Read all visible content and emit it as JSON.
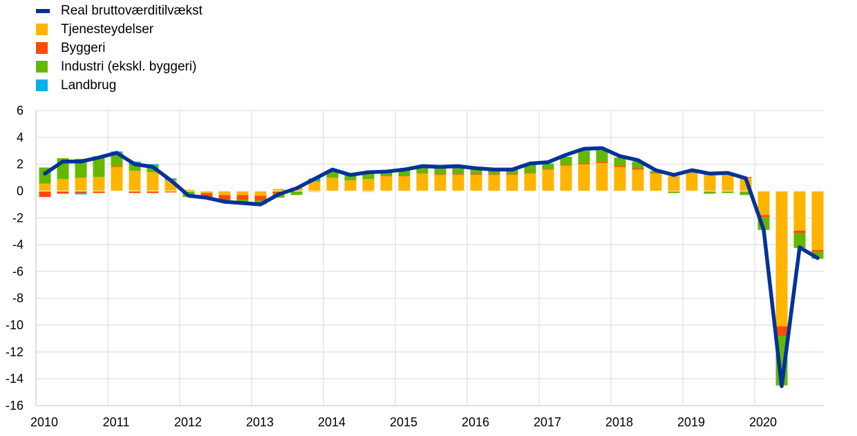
{
  "legend": [
    {
      "label": "Real bruttoværditilvækst",
      "color": "#003299",
      "kind": "line"
    },
    {
      "label": "Tjenesteydelser",
      "color": "#FFB400",
      "kind": "bar"
    },
    {
      "label": "Byggeri",
      "color": "#FF4B00",
      "kind": "bar"
    },
    {
      "label": "Industri (ekskl. byggeri)",
      "color": "#65B800",
      "kind": "bar"
    },
    {
      "label": "Landbrug",
      "color": "#00B1EA",
      "kind": "bar"
    }
  ],
  "chart_data": {
    "type": "bar",
    "stacked": true,
    "ylim": [
      -16,
      6
    ],
    "yticks": [
      6,
      4,
      2,
      0,
      -2,
      -4,
      -6,
      -8,
      -10,
      -12,
      -14,
      -16
    ],
    "xtick_labels": [
      "2010",
      "2011",
      "2012",
      "2013",
      "2014",
      "2015",
      "2016",
      "2017",
      "2018",
      "2019",
      "2020"
    ],
    "quarters_per_year": 4,
    "grid": true,
    "legend_position": "top-left",
    "series": [
      {
        "name": "Tjenesteydelser",
        "color": "#FFB400",
        "values": [
          0.55,
          0.9,
          1.0,
          1.05,
          1.8,
          1.5,
          1.4,
          0.8,
          0.1,
          -0.15,
          -0.3,
          -0.3,
          -0.35,
          0.15,
          0.2,
          0.7,
          1.0,
          0.8,
          0.9,
          1.1,
          1.1,
          1.3,
          1.2,
          1.2,
          1.2,
          1.2,
          1.2,
          1.3,
          1.6,
          1.9,
          2.0,
          2.1,
          1.8,
          1.6,
          1.3,
          1.1,
          1.4,
          1.2,
          1.3,
          1.0,
          -1.8,
          -10.1,
          -2.95,
          -4.4
        ]
      },
      {
        "name": "Byggeri",
        "color": "#FF4B00",
        "values": [
          -0.45,
          -0.2,
          -0.15,
          -0.15,
          0.05,
          -0.15,
          -0.15,
          -0.1,
          0.0,
          -0.3,
          -0.35,
          -0.35,
          -0.35,
          -0.2,
          0.0,
          -0.05,
          0.0,
          0.0,
          -0.05,
          0.05,
          0.05,
          0.05,
          0.05,
          0.05,
          0.05,
          0.05,
          0.05,
          0.05,
          0.05,
          0.05,
          0.1,
          0.1,
          0.1,
          0.1,
          0.05,
          0.0,
          0.05,
          0.05,
          0.05,
          0.05,
          -0.15,
          -0.7,
          -0.2,
          -0.15
        ]
      },
      {
        "name": "Industri (ekskl. byggeri)",
        "color": "#65B800",
        "values": [
          1.2,
          1.55,
          1.4,
          1.55,
          1.0,
          0.6,
          0.5,
          0.1,
          -0.45,
          -0.1,
          -0.2,
          -0.3,
          -0.3,
          -0.3,
          -0.3,
          0.1,
          0.5,
          0.45,
          0.45,
          0.3,
          0.45,
          0.5,
          0.55,
          0.55,
          0.5,
          0.4,
          0.4,
          0.6,
          0.4,
          0.6,
          0.9,
          0.85,
          0.6,
          0.5,
          0.15,
          -0.15,
          0.1,
          -0.2,
          -0.15,
          -0.3,
          -0.95,
          -3.7,
          -1.1,
          -0.5
        ]
      },
      {
        "name": "Landbrug",
        "color": "#00B1EA",
        "values": [
          0.0,
          0.0,
          -0.1,
          0.0,
          0.1,
          0.1,
          0.1,
          0.05,
          0.0,
          0.0,
          0.0,
          0.0,
          0.0,
          0.0,
          0.05,
          0.15,
          0.05,
          0.0,
          0.0,
          0.0,
          0.0,
          0.0,
          0.0,
          0.0,
          0.0,
          0.0,
          0.0,
          0.0,
          0.0,
          0.0,
          0.0,
          0.0,
          0.0,
          0.0,
          0.0,
          0.0,
          0.0,
          0.0,
          0.0,
          0.0,
          0.0,
          0.0,
          0.0,
          0.0
        ]
      },
      {
        "name": "Real bruttoværditilvækst",
        "color": "#003299",
        "kind": "line",
        "values": [
          1.3,
          2.2,
          2.2,
          2.5,
          2.85,
          2.0,
          1.8,
          0.8,
          -0.35,
          -0.5,
          -0.8,
          -0.9,
          -1.0,
          -0.25,
          0.2,
          0.9,
          1.6,
          1.2,
          1.4,
          1.45,
          1.6,
          1.85,
          1.8,
          1.85,
          1.7,
          1.6,
          1.6,
          2.05,
          2.15,
          2.7,
          3.15,
          3.2,
          2.6,
          2.3,
          1.55,
          1.2,
          1.55,
          1.3,
          1.35,
          0.95,
          -2.9,
          -14.55,
          -4.2,
          -5.0
        ]
      }
    ]
  }
}
